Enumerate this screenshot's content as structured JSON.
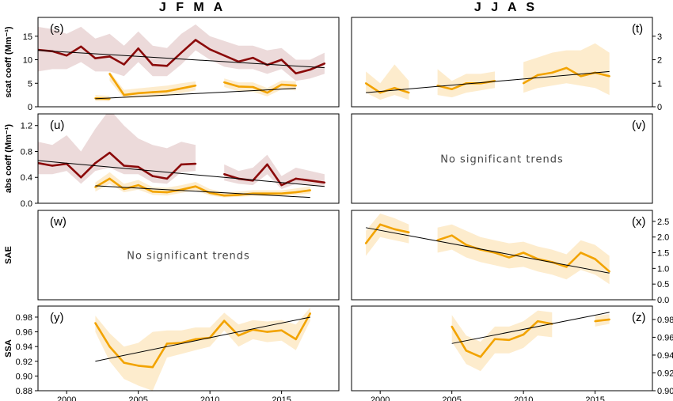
{
  "season_titles": [
    "J F M A",
    "J J A S"
  ],
  "colors": {
    "dark_red": "#8b0a0a",
    "dark_red_band": "#e9d3d3",
    "orange": "#f2a300",
    "orange_band": "#fde9c4",
    "trend": "#000000"
  },
  "chart_data": [
    {
      "id": "s",
      "type": "line",
      "panel_label": "(s)",
      "ylabel": "scat coeff (Mm⁻¹)",
      "xlim": [
        1998,
        2019
      ],
      "ylim": [
        0,
        19
      ],
      "ticks": [
        0,
        5,
        10,
        15
      ],
      "axis_side": "left",
      "xticks": [],
      "note": "",
      "series": [
        {
          "color": "dark_red",
          "segments": [
            {
              "x": [
                1998,
                1999,
                2000,
                2001,
                2002,
                2003,
                2004,
                2005,
                2006,
                2007,
                2008,
                2009,
                2010,
                2011,
                2012,
                2013,
                2014,
                2015,
                2016,
                2017,
                2018
              ],
              "y": [
                12.1,
                11.8,
                10.9,
                12.8,
                10.3,
                10.7,
                9.0,
                12.4,
                8.9,
                8.7,
                11.5,
                14.2,
                12.2,
                10.9,
                9.6,
                10.4,
                8.9,
                10.0,
                7.1,
                7.9,
                9.2
              ],
              "low": [
                7.5,
                8.0,
                8.0,
                9.5,
                7.5,
                7.5,
                6.5,
                9.5,
                6.5,
                6.5,
                9.0,
                12.0,
                10.0,
                8.5,
                8.0,
                8.0,
                7.0,
                8.0,
                5.5,
                6.0,
                7.0
              ],
              "high": [
                17.0,
                16.5,
                15.5,
                17.0,
                14.5,
                15.5,
                13.0,
                16.0,
                13.0,
                12.5,
                15.5,
                17.5,
                15.0,
                14.0,
                13.0,
                13.0,
                12.0,
                12.5,
                10.0,
                10.0,
                11.5
              ]
            }
          ],
          "trend": {
            "x": [
              1998,
              2018
            ],
            "y": [
              12.0,
              8.3
            ]
          }
        },
        {
          "color": "orange",
          "segments": [
            {
              "x": [
                2002,
                2003
              ],
              "y": [
                1.8,
                1.7
              ],
              "low": [
                1.2,
                1.2
              ],
              "high": [
                2.5,
                2.3
              ]
            },
            {
              "x": [
                2003,
                2004,
                2005,
                2006,
                2007,
                2008,
                2009
              ],
              "y": [
                7.0,
                2.5,
                2.9,
                3.1,
                3.3,
                3.9,
                4.5
              ],
              "low": [
                5.5,
                1.8,
                2.0,
                2.1,
                2.3,
                2.9,
                3.5
              ],
              "high": [
                7.5,
                3.6,
                3.9,
                4.2,
                4.5,
                5.0,
                5.4
              ]
            },
            {
              "x": [
                2011,
                2012,
                2013,
                2014,
                2015,
                2016
              ],
              "y": [
                5.2,
                4.3,
                4.2,
                3.0,
                4.7,
                4.5
              ],
              "low": [
                4.2,
                3.3,
                3.2,
                2.2,
                3.7,
                3.5
              ],
              "high": [
                6.0,
                5.2,
                5.2,
                4.0,
                5.6,
                5.4
              ]
            }
          ],
          "trend": {
            "x": [
              2002,
              2016
            ],
            "y": [
              1.7,
              3.9
            ]
          }
        }
      ]
    },
    {
      "id": "t",
      "type": "line",
      "panel_label": "(t)",
      "ylabel": "",
      "xlim": [
        1998,
        2019
      ],
      "ylim": [
        0,
        3.8
      ],
      "ticks": [
        0,
        1,
        2,
        3
      ],
      "axis_side": "right",
      "xticks": [],
      "note": "",
      "series": [
        {
          "color": "orange",
          "segments": [
            {
              "x": [
                1999,
                2000,
                2001,
                2002
              ],
              "y": [
                1.0,
                0.6,
                0.8,
                0.6
              ],
              "low": [
                0.6,
                0.3,
                0.5,
                0.3
              ],
              "high": [
                1.5,
                1.0,
                1.8,
                1.1
              ]
            },
            {
              "x": [
                2004,
                2005,
                2006,
                2007,
                2008
              ],
              "y": [
                0.9,
                0.75,
                1.0,
                1.0,
                1.1
              ],
              "low": [
                0.5,
                0.4,
                0.6,
                0.7,
                0.8
              ],
              "high": [
                1.6,
                1.1,
                1.4,
                1.4,
                1.5
              ]
            },
            {
              "x": [
                2010,
                2011,
                2012,
                2013,
                2014,
                2015,
                2016
              ],
              "y": [
                1.0,
                1.35,
                1.45,
                1.65,
                1.3,
                1.45,
                1.3
              ],
              "low": [
                0.6,
                0.8,
                0.9,
                1.0,
                0.9,
                0.8,
                0.5
              ],
              "high": [
                1.9,
                2.1,
                2.3,
                2.4,
                2.4,
                2.7,
                2.3
              ]
            }
          ],
          "trend": {
            "x": [
              1999,
              2016
            ],
            "y": [
              0.6,
              1.5
            ]
          }
        }
      ]
    },
    {
      "id": "u",
      "type": "line",
      "panel_label": "(u)",
      "ylabel": "abs coeff (Mm⁻¹)",
      "xlim": [
        1998,
        2019
      ],
      "ylim": [
        0,
        1.38
      ],
      "ticks": [
        0.0,
        0.4,
        0.8,
        1.2
      ],
      "axis_side": "left",
      "xticks": [],
      "note": "",
      "series": [
        {
          "color": "dark_red",
          "segments": [
            {
              "x": [
                1998,
                1999,
                2000,
                2001,
                2002,
                2003,
                2004,
                2005,
                2006,
                2007,
                2008,
                2009
              ],
              "y": [
                0.62,
                0.58,
                0.61,
                0.4,
                0.62,
                0.78,
                0.58,
                0.56,
                0.42,
                0.38,
                0.6,
                0.61
              ],
              "low": [
                0.45,
                0.45,
                0.5,
                0.3,
                0.5,
                0.55,
                0.45,
                0.45,
                0.32,
                0.3,
                0.48,
                0.5
              ],
              "high": [
                0.95,
                0.9,
                1.05,
                0.8,
                1.15,
                1.45,
                1.2,
                1.0,
                0.9,
                0.85,
                0.95,
                0.9
              ]
            },
            {
              "x": [
                2011,
                2012,
                2013,
                2014,
                2015,
                2016,
                2017,
                2018
              ],
              "y": [
                0.45,
                0.38,
                0.35,
                0.6,
                0.28,
                0.38,
                0.35,
                0.32
              ],
              "low": [
                0.35,
                0.3,
                0.28,
                0.45,
                0.22,
                0.3,
                0.28,
                0.26
              ],
              "high": [
                0.6,
                0.5,
                0.55,
                0.75,
                0.42,
                0.55,
                0.5,
                0.45
              ]
            }
          ],
          "trend": {
            "x": [
              1998,
              2018
            ],
            "y": [
              0.66,
              0.26
            ]
          }
        },
        {
          "color": "orange",
          "segments": [
            {
              "x": [
                2002,
                2003,
                2004,
                2005,
                2006,
                2007,
                2008,
                2009,
                2010,
                2011,
                2012,
                2013,
                2014,
                2015,
                2016,
                2017
              ],
              "y": [
                0.25,
                0.38,
                0.22,
                0.28,
                0.18,
                0.17,
                0.21,
                0.26,
                0.16,
                0.12,
                0.13,
                0.15,
                0.15,
                0.15,
                0.17,
                0.2
              ],
              "low": [
                0.18,
                0.3,
                0.17,
                0.21,
                0.13,
                0.12,
                0.16,
                0.2,
                0.12,
                0.09,
                0.1,
                0.11,
                0.11,
                0.11,
                0.13,
                0.15
              ],
              "high": [
                0.32,
                0.48,
                0.3,
                0.36,
                0.25,
                0.24,
                0.28,
                0.33,
                0.22,
                0.17,
                0.18,
                0.2,
                0.2,
                0.2,
                0.23,
                0.26
              ]
            }
          ],
          "trend": {
            "x": [
              2002,
              2017
            ],
            "y": [
              0.27,
              0.09
            ]
          }
        }
      ]
    },
    {
      "id": "v",
      "type": "line",
      "panel_label": "(v)",
      "ylabel": "",
      "xlim": [
        1998,
        2019
      ],
      "ylim": [
        0,
        1
      ],
      "ticks": [],
      "axis_side": "right",
      "xticks": [],
      "note": "No significant trends",
      "series": []
    },
    {
      "id": "w",
      "type": "line",
      "panel_label": "(w)",
      "ylabel": "SAE",
      "xlim": [
        1998,
        2019
      ],
      "ylim": [
        0,
        1
      ],
      "ticks": [],
      "axis_side": "left",
      "xticks": [],
      "note": "No significant trends",
      "series": []
    },
    {
      "id": "x",
      "type": "line",
      "panel_label": "(x)",
      "ylabel": "",
      "xlim": [
        1998,
        2019
      ],
      "ylim": [
        0,
        2.85
      ],
      "ticks": [
        0.0,
        0.5,
        1.0,
        1.5,
        2.0,
        2.5
      ],
      "axis_side": "right",
      "xticks": [],
      "note": "",
      "series": [
        {
          "color": "orange",
          "segments": [
            {
              "x": [
                1999,
                2000,
                2001,
                2002
              ],
              "y": [
                1.8,
                2.4,
                2.25,
                2.15
              ],
              "low": [
                1.4,
                2.0,
                1.9,
                1.8
              ],
              "high": [
                2.2,
                2.75,
                2.6,
                2.4
              ]
            },
            {
              "x": [
                2004,
                2005,
                2006,
                2007,
                2008,
                2009,
                2010,
                2011,
                2012,
                2013,
                2014,
                2015,
                2016
              ],
              "y": [
                1.9,
                2.05,
                1.75,
                1.6,
                1.5,
                1.35,
                1.5,
                1.3,
                1.2,
                1.05,
                1.5,
                1.3,
                0.9
              ],
              "low": [
                1.5,
                1.6,
                1.35,
                1.2,
                1.1,
                1.0,
                1.05,
                0.9,
                0.8,
                0.65,
                0.95,
                0.8,
                0.5
              ],
              "high": [
                2.3,
                2.4,
                2.2,
                2.0,
                1.9,
                1.8,
                1.85,
                1.7,
                1.6,
                1.45,
                1.9,
                1.75,
                1.4
              ]
            }
          ],
          "trend": {
            "x": [
              1999,
              2016
            ],
            "y": [
              2.3,
              0.85
            ]
          }
        }
      ]
    },
    {
      "id": "y",
      "type": "line",
      "panel_label": "(y)",
      "ylabel": "SSA",
      "xlim": [
        1998,
        2019
      ],
      "ylim": [
        0.88,
        0.995
      ],
      "ticks": [
        0.88,
        0.9,
        0.92,
        0.94,
        0.96,
        0.98
      ],
      "axis_side": "left",
      "xticks": [
        2000,
        2005,
        2010,
        2015
      ],
      "note": "",
      "series": [
        {
          "color": "orange",
          "segments": [
            {
              "x": [
                2002,
                2003,
                2004,
                2005,
                2006,
                2007,
                2008,
                2009,
                2010,
                2011,
                2012,
                2013,
                2014,
                2015,
                2016,
                2017
              ],
              "y": [
                0.972,
                0.94,
                0.918,
                0.914,
                0.912,
                0.944,
                0.945,
                0.95,
                0.952,
                0.975,
                0.955,
                0.963,
                0.96,
                0.962,
                0.95,
                0.985
              ],
              "low": [
                0.96,
                0.92,
                0.896,
                0.887,
                0.88,
                0.925,
                0.93,
                0.935,
                0.94,
                0.962,
                0.94,
                0.95,
                0.946,
                0.948,
                0.935,
                0.975
              ],
              "high": [
                0.982,
                0.958,
                0.94,
                0.945,
                0.96,
                0.962,
                0.962,
                0.966,
                0.966,
                0.986,
                0.97,
                0.976,
                0.974,
                0.976,
                0.97,
                0.993
              ]
            }
          ],
          "trend": {
            "x": [
              2002,
              2017
            ],
            "y": [
              0.92,
              0.98
            ]
          }
        }
      ]
    },
    {
      "id": "z",
      "type": "line",
      "panel_label": "(z)",
      "ylabel": "",
      "xlim": [
        1998,
        2019
      ],
      "ylim": [
        0.9,
        0.995
      ],
      "ticks": [
        0.9,
        0.92,
        0.94,
        0.96,
        0.98
      ],
      "axis_side": "right",
      "xticks": [
        2000,
        2005,
        2010,
        2015
      ],
      "note": "",
      "series": [
        {
          "color": "orange",
          "segments": [
            {
              "x": [
                2005,
                2006,
                2007,
                2008,
                2009,
                2010,
                2011,
                2012
              ],
              "y": [
                0.972,
                0.945,
                0.938,
                0.958,
                0.957,
                0.963,
                0.978,
                0.975
              ],
              "low": [
                0.955,
                0.93,
                0.922,
                0.942,
                0.942,
                0.948,
                0.962,
                0.96
              ],
              "high": [
                0.985,
                0.962,
                0.955,
                0.972,
                0.972,
                0.978,
                0.99,
                0.988
              ]
            },
            {
              "x": [
                2015,
                2016
              ],
              "y": [
                0.978,
                0.98
              ],
              "low": [
                0.972,
                0.975
              ],
              "high": [
                0.984,
                0.986
              ]
            }
          ],
          "trend": {
            "x": [
              2005,
              2016
            ],
            "y": [
              0.953,
              0.988
            ]
          }
        }
      ]
    }
  ]
}
